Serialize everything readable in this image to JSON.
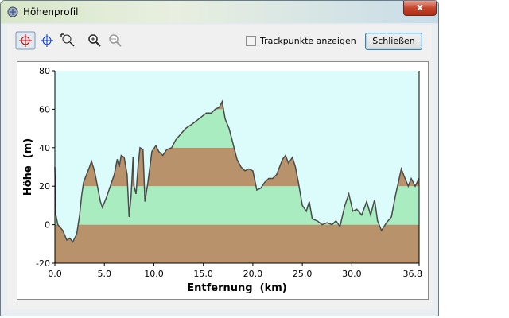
{
  "window": {
    "title": "Höhenprofil"
  },
  "toolbar": {
    "checkbox_label": "Trackpunkte anzeigen",
    "checked": false,
    "button_label": "Schließen"
  },
  "chart_data": {
    "type": "area-line",
    "xlabel": "Entfernung  (km)",
    "ylabel": "Höhe  (m)",
    "x": [
      0.0,
      0.1,
      0.3,
      0.8,
      1.2,
      1.5,
      1.8,
      2.2,
      2.5,
      2.7,
      2.9,
      3.2,
      3.5,
      3.7,
      4.0,
      4.3,
      4.6,
      4.8,
      5.2,
      5.6,
      6.0,
      6.3,
      6.5,
      6.7,
      7.0,
      7.3,
      7.5,
      7.7,
      7.9,
      8.0,
      8.2,
      8.4,
      8.6,
      8.9,
      9.1,
      9.4,
      9.8,
      10.2,
      10.5,
      10.9,
      11.3,
      11.8,
      12.2,
      12.7,
      13.2,
      13.8,
      14.3,
      14.8,
      15.3,
      15.8,
      16.2,
      16.6,
      16.9,
      17.2,
      17.6,
      18.0,
      18.4,
      18.8,
      19.2,
      19.6,
      20.0,
      20.4,
      20.8,
      21.2,
      21.6,
      22.0,
      22.4,
      22.7,
      23.0,
      23.3,
      23.6,
      24.0,
      24.3,
      24.6,
      25.0,
      25.4,
      25.7,
      26.0,
      26.5,
      27.0,
      27.5,
      28.0,
      28.4,
      28.8,
      29.3,
      29.7,
      30.1,
      30.5,
      31.0,
      31.5,
      31.9,
      32.3,
      32.6,
      33.0,
      33.5,
      34.0,
      34.4,
      34.7,
      35.0,
      35.3,
      35.7,
      36.0,
      36.4,
      36.8
    ],
    "y": [
      30,
      5,
      0,
      -3,
      -8,
      -7,
      -9,
      -5,
      5,
      15,
      22,
      26,
      30,
      33,
      28,
      20,
      12,
      9,
      14,
      20,
      26,
      34,
      30,
      36,
      35,
      26,
      4,
      15,
      35,
      20,
      16,
      30,
      40,
      39,
      12,
      22,
      38,
      41,
      38,
      36,
      39,
      40,
      44,
      47,
      50,
      52,
      54,
      56,
      58,
      58,
      60,
      61,
      64,
      55,
      50,
      42,
      34,
      30,
      28,
      29,
      28,
      18,
      19,
      22,
      24,
      24,
      26,
      30,
      34,
      36,
      32,
      35,
      30,
      22,
      10,
      7,
      12,
      3,
      2,
      0,
      1,
      0,
      2,
      -1,
      10,
      16,
      7,
      8,
      5,
      12,
      5,
      13,
      2,
      -3,
      1,
      4,
      15,
      22,
      29,
      25,
      20,
      24,
      20,
      24
    ],
    "line_color": "#4a4a4a",
    "background_color": "#dcfcfc",
    "band_colors": [
      "#b8926a",
      "#a8ecc0"
    ],
    "xlim": [
      0,
      36.8
    ],
    "ylim": [
      -20,
      80
    ],
    "xticks": [
      {
        "value": 0,
        "label": "0.0"
      },
      {
        "value": 5,
        "label": "5.0"
      },
      {
        "value": 10,
        "label": "10.0"
      },
      {
        "value": 15,
        "label": "15.0"
      },
      {
        "value": 20,
        "label": "20.0"
      },
      {
        "value": 25,
        "label": "25.0"
      },
      {
        "value": 30,
        "label": "30.0"
      },
      {
        "value": 36.8,
        "label": "36.8"
      }
    ],
    "yticks": [
      -20,
      0,
      20,
      40,
      60,
      80
    ],
    "grid": false
  }
}
